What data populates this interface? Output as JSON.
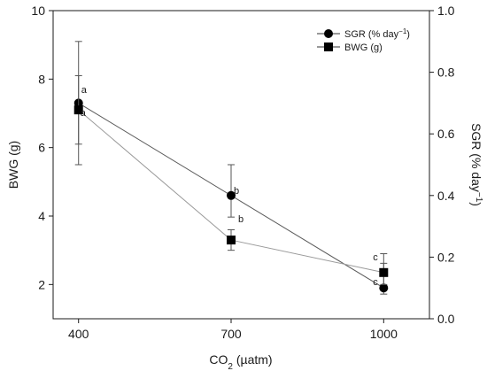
{
  "chart_data": {
    "type": "line",
    "categories": [
      "400",
      "700",
      "1000"
    ],
    "x": [
      400,
      700,
      1000
    ],
    "xlim": [
      350,
      1090
    ],
    "xticks": [
      "400",
      "700",
      "1000"
    ],
    "xlabel_main": "CO",
    "xlabel_sub": "2",
    "xlabel_unit": " (µatm)",
    "ylabel_left": "BWG (g)",
    "ylim_left": [
      1,
      10
    ],
    "yticks_left": [
      "2",
      "4",
      "6",
      "8",
      "10"
    ],
    "ylabel_right_main": "SGR (% day",
    "ylabel_right_sup": "−1",
    "ylabel_right_end": ")",
    "ylim_right": [
      0,
      1
    ],
    "yticks_right": [
      "0.0",
      "0.2",
      "0.4",
      "0.6",
      "0.8",
      "1.0"
    ],
    "grid": false,
    "legend_position": "top-right",
    "series": [
      {
        "name_main": "SGR (% day",
        "name_sup": "−1",
        "name_end": ")",
        "marker": "circle",
        "axis": "right",
        "color": "#5a5a5a",
        "values": [
          0.7,
          0.4,
          0.1
        ],
        "error_low": [
          0.5,
          0.33,
          0.08
        ],
        "error_high": [
          0.9,
          0.5,
          0.18
        ],
        "labels": [
          "a",
          "b",
          "c"
        ]
      },
      {
        "name": "BWG (g)",
        "marker": "square",
        "axis": "left",
        "color": "#9a9a9a",
        "values": [
          7.1,
          3.3,
          2.35
        ],
        "error_low": [
          6.1,
          3.0,
          2.0
        ],
        "error_high": [
          8.1,
          3.6,
          2.9
        ],
        "labels": [
          "a",
          "b",
          "c"
        ]
      }
    ]
  }
}
